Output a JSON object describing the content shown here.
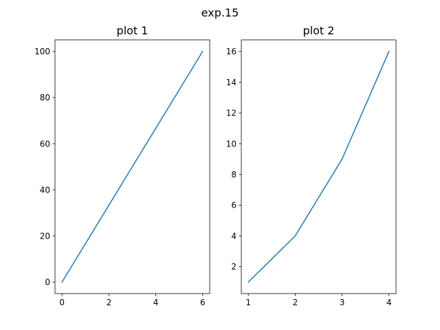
{
  "figure": {
    "suptitle": "exp.15"
  },
  "chart_data": [
    {
      "type": "line",
      "title": "plot 1",
      "xlabel": "",
      "ylabel": "",
      "grid": false,
      "line_color": "#1f77b4",
      "xlim": [
        -0.3,
        6.3
      ],
      "ylim": [
        -5,
        105
      ],
      "xticks": [
        0,
        2,
        4,
        6
      ],
      "yticks": [
        0,
        20,
        40,
        60,
        80,
        100
      ],
      "series": [
        {
          "x": [
            0,
            6
          ],
          "y": [
            0,
            100
          ]
        }
      ]
    },
    {
      "type": "line",
      "title": "plot 2",
      "xlabel": "",
      "ylabel": "",
      "grid": false,
      "line_color": "#1f77b4",
      "xlim": [
        0.85,
        4.15
      ],
      "ylim": [
        0.25,
        16.75
      ],
      "xticks": [
        1,
        2,
        3,
        4
      ],
      "yticks": [
        2,
        4,
        6,
        8,
        10,
        12,
        14,
        16
      ],
      "series": [
        {
          "x": [
            1,
            2,
            3,
            4
          ],
          "y": [
            1,
            4,
            9,
            16
          ]
        }
      ]
    }
  ]
}
